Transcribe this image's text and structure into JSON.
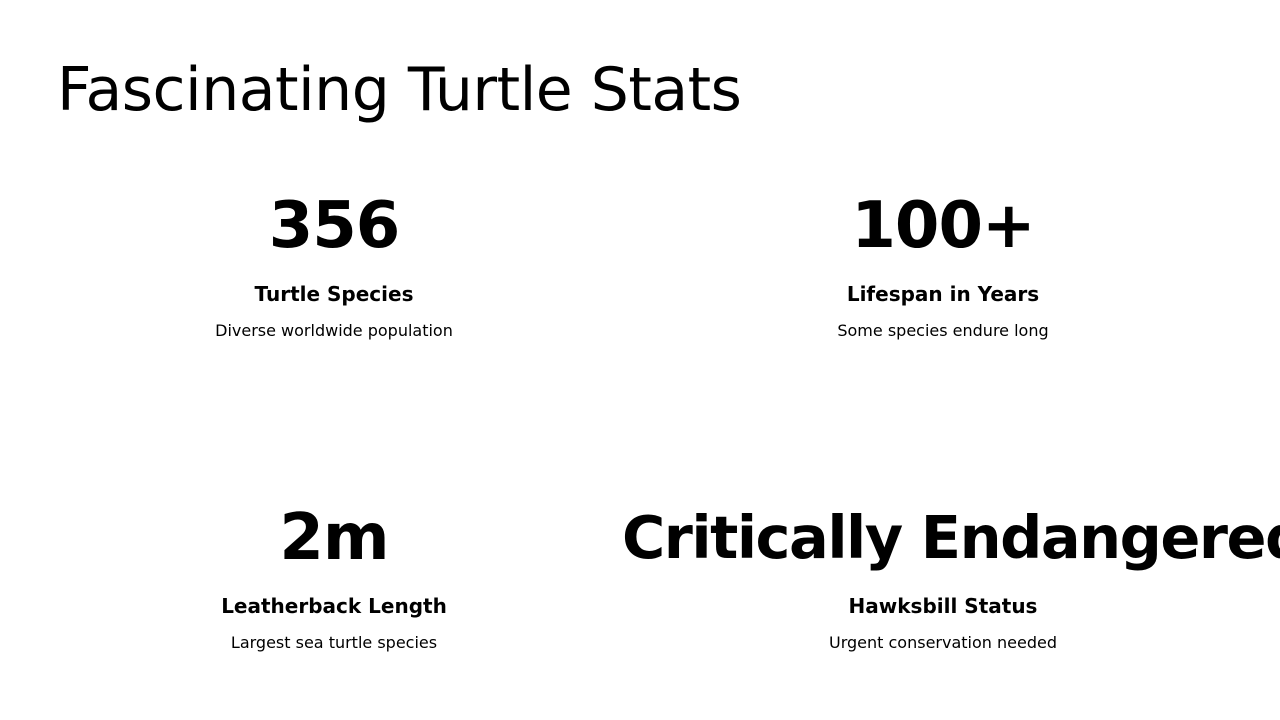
{
  "title": "Fascinating Turtle Stats",
  "stats": [
    {
      "value": "356",
      "label": "Turtle Species",
      "description": "Diverse worldwide population"
    },
    {
      "value": "100+",
      "label": "Lifespan in Years",
      "description": "Some species endure long"
    },
    {
      "value": "2m",
      "label": "Leatherback Length",
      "description": "Largest sea turtle species"
    },
    {
      "value": "Critically Endangered",
      "label": "Hawksbill Status",
      "description": "Urgent conservation needed"
    }
  ],
  "colors": {
    "background": "#ffffff",
    "text": "#000000"
  }
}
